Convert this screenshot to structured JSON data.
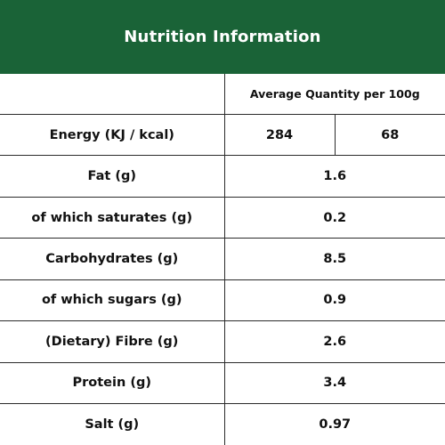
{
  "header": {
    "title": "Nutrition Information"
  },
  "table": {
    "column_header": "Average Quantity per 100g",
    "energy": {
      "label": "Energy (KJ / kcal)",
      "kj": "284",
      "kcal": "68"
    },
    "rows": [
      {
        "label": "Fat (g)",
        "value": "1.6"
      },
      {
        "label": "of which saturates (g)",
        "value": "0.2"
      },
      {
        "label": "Carbohydrates (g)",
        "value": "8.5"
      },
      {
        "label": "of which sugars (g)",
        "value": "0.9"
      },
      {
        "label": "(Dietary) Fibre (g)",
        "value": "2.6"
      },
      {
        "label": "Protein (g)",
        "value": "3.4"
      },
      {
        "label": "Salt (g)",
        "value": "0.97"
      }
    ]
  },
  "colors": {
    "header_background": "#1a6337",
    "header_text": "#ffffff",
    "border": "#2b2b2b",
    "text": "#111111"
  }
}
